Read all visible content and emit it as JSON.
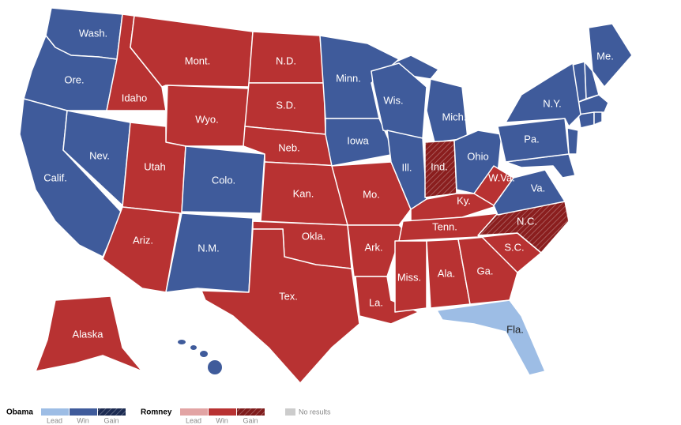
{
  "states": [
    {
      "label": "Wash.",
      "color": "#3f5b9b",
      "hatched": false
    },
    {
      "label": "Ore.",
      "color": "#3f5b9b",
      "hatched": false
    },
    {
      "label": "Calif.",
      "color": "#3f5b9b",
      "hatched": false
    },
    {
      "label": "Nev.",
      "color": "#3f5b9b",
      "hatched": false
    },
    {
      "label": "Idaho",
      "color": "#b83232",
      "hatched": false
    },
    {
      "label": "Mont.",
      "color": "#b83232",
      "hatched": false
    },
    {
      "label": "Wyo.",
      "color": "#b83232",
      "hatched": false
    },
    {
      "label": "Utah",
      "color": "#b83232",
      "hatched": false
    },
    {
      "label": "Colo.",
      "color": "#3f5b9b",
      "hatched": false
    },
    {
      "label": "Ariz.",
      "color": "#b83232",
      "hatched": false
    },
    {
      "label": "N.M.",
      "color": "#3f5b9b",
      "hatched": false
    },
    {
      "label": "N.D.",
      "color": "#b83232",
      "hatched": false
    },
    {
      "label": "S.D.",
      "color": "#b83232",
      "hatched": false
    },
    {
      "label": "Neb.",
      "color": "#b83232",
      "hatched": false
    },
    {
      "label": "Kan.",
      "color": "#b83232",
      "hatched": false
    },
    {
      "label": "Okla.",
      "color": "#b83232",
      "hatched": false
    },
    {
      "label": "Tex.",
      "color": "#b83232",
      "hatched": false
    },
    {
      "label": "Mo.",
      "color": "#b83232",
      "hatched": false
    },
    {
      "label": "Ark.",
      "color": "#b83232",
      "hatched": false
    },
    {
      "label": "La.",
      "color": "#b83232",
      "hatched": false
    },
    {
      "label": "Minn.",
      "color": "#3f5b9b",
      "hatched": false
    },
    {
      "label": "Iowa",
      "color": "#3f5b9b",
      "hatched": false
    },
    {
      "label": "Wis.",
      "color": "#3f5b9b",
      "hatched": false
    },
    {
      "label": "Ill.",
      "color": "#3f5b9b",
      "hatched": false
    },
    {
      "label": "Mich.",
      "color": "#3f5b9b",
      "hatched": false
    },
    {
      "label": "Ind.",
      "color": "#8a1e1e",
      "hatched": true
    },
    {
      "label": "Ohio",
      "color": "#3f5b9b",
      "hatched": false
    },
    {
      "label": "Ky.",
      "color": "#b83232",
      "hatched": false
    },
    {
      "label": "Tenn.",
      "color": "#b83232",
      "hatched": false
    },
    {
      "label": "Miss.",
      "color": "#b83232",
      "hatched": false
    },
    {
      "label": "Ala.",
      "color": "#b83232",
      "hatched": false
    },
    {
      "label": "Ga.",
      "color": "#b83232",
      "hatched": false
    },
    {
      "label": "Fla.",
      "color": "#9dbde5",
      "hatched": false
    },
    {
      "label": "S.C.",
      "color": "#b83232",
      "hatched": false
    },
    {
      "label": "N.C.",
      "color": "#8a1e1e",
      "hatched": true
    },
    {
      "label": "Va.",
      "color": "#3f5b9b",
      "hatched": false
    },
    {
      "label": "W.Va.",
      "color": "#b83232",
      "hatched": false
    },
    {
      "label": "Pa.",
      "color": "#3f5b9b",
      "hatched": false
    },
    {
      "label": "N.Y.",
      "color": "#3f5b9b",
      "hatched": false
    },
    {
      "label": "Me.",
      "color": "#3f5b9b",
      "hatched": false
    },
    {
      "label": "Alaska",
      "color": "#b83232",
      "hatched": false
    }
  ],
  "legend": {
    "groups": [
      {
        "name": "Obama",
        "items": [
          {
            "label": "Lead",
            "color": "#9dbde5",
            "hatched": false
          },
          {
            "label": "Win",
            "color": "#3f5b9b",
            "hatched": false
          },
          {
            "label": "Gain",
            "color": "#1c2b52",
            "hatched": true
          }
        ]
      },
      {
        "name": "Romney",
        "items": [
          {
            "label": "Lead",
            "color": "#e2a4a4",
            "hatched": false
          },
          {
            "label": "Win",
            "color": "#b83232",
            "hatched": false
          },
          {
            "label": "Gain",
            "color": "#7f1c1c",
            "hatched": true
          }
        ]
      }
    ],
    "no_results": {
      "label": "No results",
      "color": "#cccccc"
    }
  }
}
